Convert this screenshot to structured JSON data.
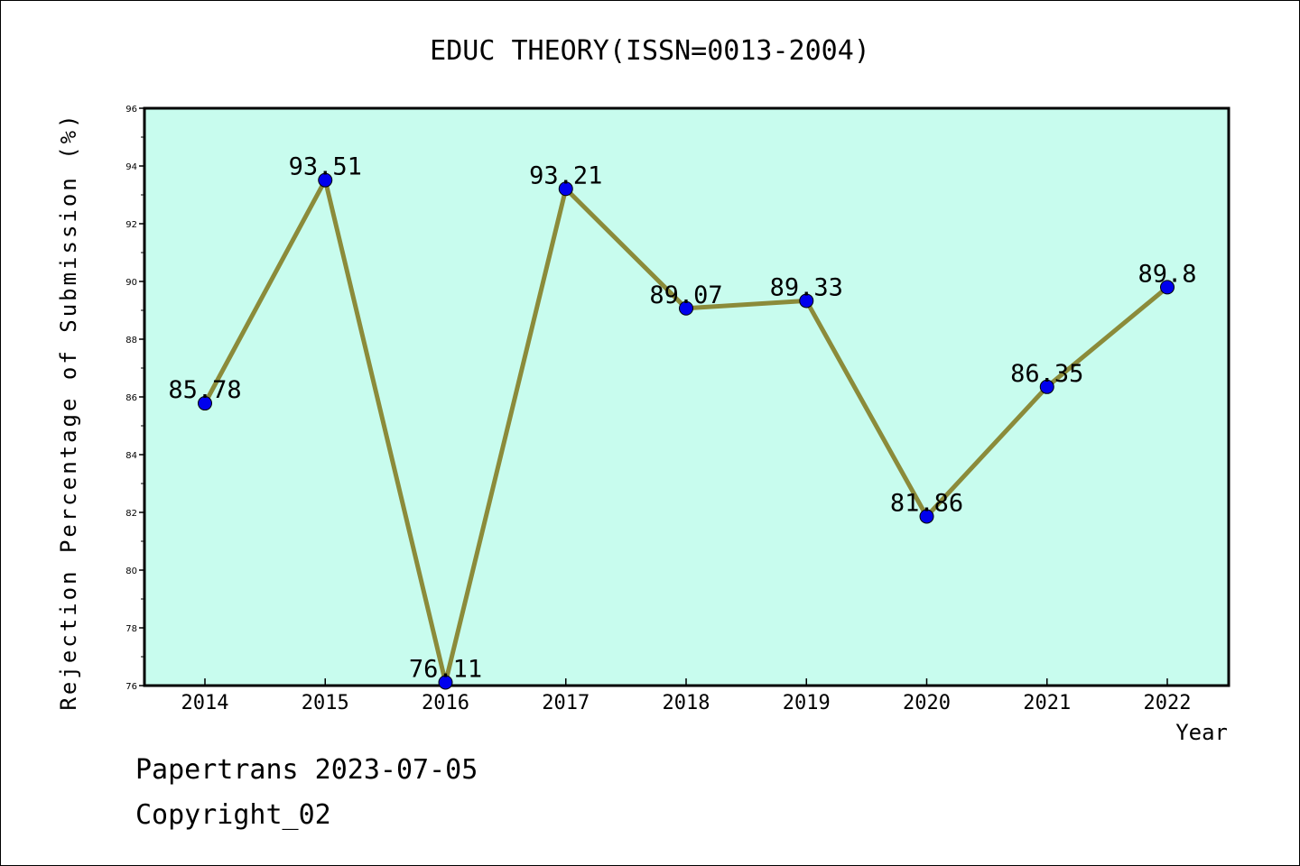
{
  "chart_data": {
    "type": "line",
    "title": "EDUC THEORY(ISSN=0013-2004)",
    "xlabel": "Year",
    "ylabel": "Rejection Percentage of Submission (%)",
    "categories": [
      "2014",
      "2015",
      "2016",
      "2017",
      "2018",
      "2019",
      "2020",
      "2021",
      "2022"
    ],
    "series": [
      {
        "values": [
          85.78,
          93.51,
          76.11,
          93.21,
          89.07,
          89.33,
          81.86,
          86.35,
          89.8
        ]
      }
    ],
    "data_labels": [
      "85.78",
      "93.51",
      "76.11",
      "93.21",
      "89.07",
      "89.33",
      "81.86",
      "86.35",
      "89.8"
    ],
    "ylim": [
      76,
      96
    ],
    "yticks": [
      "76",
      "78",
      "80",
      "82",
      "84",
      "86",
      "88",
      "90",
      "92",
      "94",
      "96"
    ],
    "grid": false,
    "colors": {
      "plot_background": "#c8fcee",
      "line": "#8b8b3a",
      "marker": "#0000ee"
    }
  },
  "footer": {
    "line1": "Papertrans 2023-07-05",
    "line2": "Copyright_02"
  }
}
